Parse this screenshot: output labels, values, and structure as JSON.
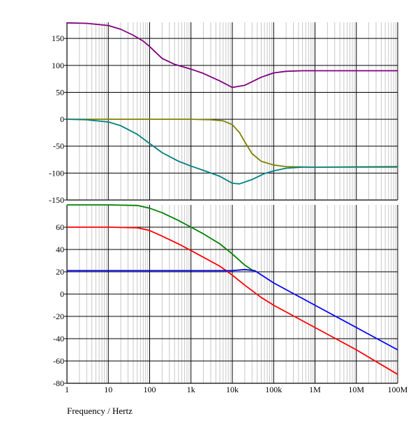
{
  "chart_data": [
    {
      "type": "line",
      "panel": "top",
      "xscale": "log",
      "xlim": [
        1,
        100000000
      ],
      "ylim": [
        -150,
        180
      ],
      "ytick_values": [
        150,
        100,
        50,
        0,
        -50,
        -100,
        -150
      ],
      "ytick_labels": [
        "150",
        "100",
        "50",
        "0",
        "-50",
        "-100",
        "-150"
      ],
      "grid": true,
      "series": [
        {
          "color": "#800080",
          "x": [
            1,
            3,
            10,
            20,
            40,
            70,
            100,
            200,
            400,
            1000,
            2000,
            5000,
            10000,
            20000,
            50000,
            100000,
            200000,
            500000,
            1000000,
            10000000,
            100000000
          ],
          "y": [
            179,
            178,
            174,
            167,
            156,
            145,
            135,
            113,
            102,
            93,
            85,
            71,
            59,
            63,
            78,
            86,
            89,
            90,
            90,
            90,
            90
          ]
        },
        {
          "color": "#808000",
          "x": [
            1,
            1000,
            3000,
            6000,
            10000,
            15000,
            20000,
            30000,
            50000,
            100000,
            200000,
            1000000,
            100000000
          ],
          "y": [
            0,
            0,
            -1,
            -3,
            -10,
            -25,
            -42,
            -64,
            -78,
            -85,
            -88,
            -89,
            -89
          ]
        },
        {
          "color": "#008080",
          "x": [
            1,
            3,
            10,
            20,
            50,
            100,
            200,
            500,
            1000,
            2000,
            5000,
            10000,
            15000,
            30000,
            60000,
            100000,
            200000,
            500000,
            1000000,
            100000000
          ],
          "y": [
            0,
            -1,
            -5,
            -12,
            -28,
            -45,
            -62,
            -78,
            -87,
            -95,
            -106,
            -119,
            -120,
            -112,
            -101,
            -96,
            -91,
            -89,
            -89,
            -88
          ]
        }
      ]
    },
    {
      "type": "line",
      "panel": "bottom",
      "xscale": "log",
      "xlim": [
        1,
        100000000
      ],
      "ylim": [
        -80,
        80
      ],
      "ytick_values": [
        60,
        40,
        20,
        0,
        -20,
        -40,
        -60,
        -80
      ],
      "ytick_labels": [
        "60",
        "40",
        "20",
        "0",
        "-20",
        "-40",
        "-60",
        "-80"
      ],
      "xtick_values": [
        1,
        10,
        100,
        1000,
        10000,
        100000,
        1000000,
        10000000,
        100000000
      ],
      "xtick_labels": [
        "1",
        "10",
        "100",
        "1k",
        "10k",
        "100k",
        "1M",
        "10M",
        "100M"
      ],
      "xlabel": "Frequency / Hertz",
      "grid": true,
      "series": [
        {
          "color": "#008000",
          "x": [
            1,
            10,
            50,
            100,
            200,
            500,
            1000,
            2000,
            5000,
            10000,
            20000,
            35000
          ],
          "y": [
            80,
            80,
            79.5,
            77,
            73,
            66,
            60,
            54,
            45,
            36,
            26,
            20
          ]
        },
        {
          "color": "#ff0000",
          "x": [
            1,
            10,
            50,
            100,
            200,
            500,
            1000,
            2000,
            5000,
            10000,
            20000,
            50000,
            100000,
            1000000,
            10000000,
            100000000
          ],
          "y": [
            60,
            60,
            59.5,
            57,
            52,
            45,
            39,
            33,
            25,
            17,
            8,
            -3,
            -10,
            -30,
            -50,
            -72
          ]
        },
        {
          "color": "#0000ff",
          "x": [
            1,
            10,
            100,
            1000,
            10000,
            20000,
            35000,
            100000,
            1000000,
            10000000,
            100000000
          ],
          "y": [
            21,
            21,
            21,
            21,
            21,
            22,
            21,
            10,
            -10,
            -30,
            -50
          ]
        }
      ]
    }
  ]
}
